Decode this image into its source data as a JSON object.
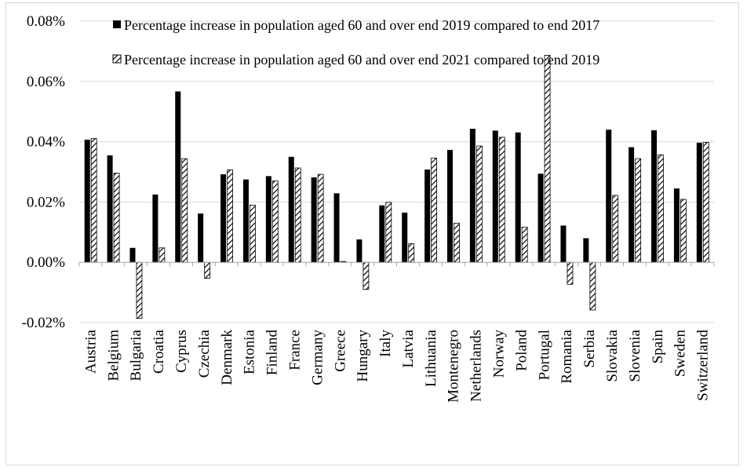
{
  "chart_data": {
    "type": "bar",
    "title": "",
    "xlabel": "",
    "ylabel": "",
    "ylim": [
      -0.02,
      0.08
    ],
    "yticks": [
      -0.02,
      0.0,
      0.02,
      0.04,
      0.06,
      0.08
    ],
    "ytick_labels": [
      "-0.02%",
      "0.00%",
      "0.02%",
      "0.04%",
      "0.06%",
      "0.08%"
    ],
    "grid": true,
    "legend_position": "top",
    "categories": [
      "Austria",
      "Belgium",
      "Bulgaria",
      "Croatia",
      "Cyprus",
      "Czechia",
      "Denmark",
      "Estonia",
      "Finland",
      "France",
      "Germany",
      "Greece",
      "Hungary",
      "Italy",
      "Latvia",
      "Lithuania",
      "Montenegro",
      "Netherlands",
      "Norway",
      "Poland",
      "Portugal",
      "Romania",
      "Serbia",
      "Slovakia",
      "Slovenia",
      "Spain",
      "Sweden",
      "Switzerland"
    ],
    "series": [
      {
        "name": "Percentage increase in population aged 60 and over end 2019 compared to end 2017",
        "color": "#000000",
        "pattern": "solid",
        "values": [
          0.0407,
          0.0355,
          0.0048,
          0.0225,
          0.0567,
          0.0162,
          0.0292,
          0.0275,
          0.0286,
          0.035,
          0.0282,
          0.0229,
          0.0076,
          0.0189,
          0.0165,
          0.0308,
          0.0373,
          0.0443,
          0.0437,
          0.0431,
          0.0294,
          0.0122,
          0.008,
          0.044,
          0.0382,
          0.0438,
          0.0245,
          0.0397
        ]
      },
      {
        "name": "Percentage increase in population aged 60 and over end 2021 compared to end 2019",
        "color": "#000000",
        "pattern": "hatched",
        "values": [
          0.0411,
          0.0296,
          -0.0186,
          0.0048,
          0.0344,
          -0.0053,
          0.0307,
          0.019,
          0.027,
          0.0313,
          0.0292,
          0.0003,
          -0.009,
          0.0199,
          0.0062,
          0.0346,
          0.013,
          0.0386,
          0.0415,
          0.0117,
          0.0687,
          -0.0073,
          -0.0158,
          0.0222,
          0.0344,
          0.0357,
          0.0209,
          0.0398
        ]
      }
    ]
  }
}
